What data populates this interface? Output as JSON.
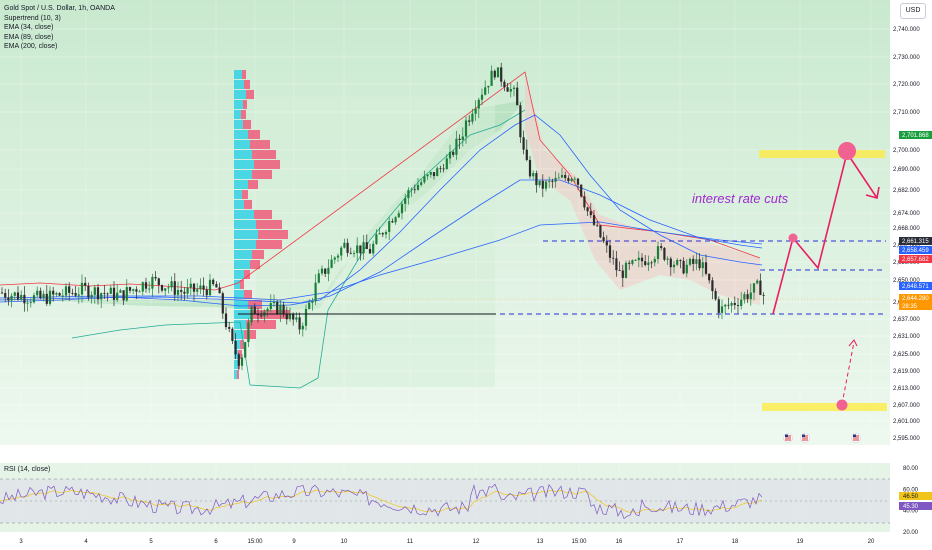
{
  "symbol_line": "Gold Spot / U.S. Dollar, 1h, OANDA",
  "indicators": [
    "Supertrend (10, 3)",
    "EMA (34, close)",
    "EMA (89, close)",
    "EMA (200, close)"
  ],
  "currency": "USD",
  "rsi_label": "RSI (14, close)",
  "annotation": "interest rate cuts",
  "colors": {
    "bull": "#26a69a",
    "bear": "#ef5350",
    "candle": "#1b7f3a",
    "ema": "#2962ff",
    "supertrend_up": "#22ab94",
    "supertrend_down": "#f23645",
    "arrow": "#e91e63",
    "rsi": "#7e57c2",
    "highlight": "#ffeb3b"
  },
  "chart_data": [
    {
      "type": "candlestick",
      "title": "Gold Spot / U.S. Dollar, 1h, OANDA",
      "ylim": [
        2592,
        2744
      ],
      "y_ticks": [
        2595,
        2601,
        2607,
        2613,
        2619,
        2625,
        2631,
        2637,
        2643,
        2650,
        2656,
        2662,
        2668,
        2674,
        2682,
        2690,
        2700,
        2710,
        2720,
        2730,
        2740
      ],
      "y_tick_labels": [
        "2,595.000",
        "2,601.000",
        "2,607.000",
        "2,613.000",
        "2,619.000",
        "2,625.000",
        "2,631.000",
        "2,637.000",
        "2,643.000",
        "2,650.000",
        "2,656.000",
        "2,662.000",
        "2,668.000",
        "2,674.000",
        "2,682.000",
        "2,690.000",
        "2,700.000",
        "2,710.000",
        "2,720.000",
        "2,730.000",
        "2,740.000"
      ],
      "x_ticks": [
        "3",
        "4",
        "5",
        "6",
        "15:00",
        "9",
        "10",
        "11",
        "12",
        "13",
        "15:00",
        "16",
        "17",
        "18",
        "19",
        "20"
      ],
      "price_close_path": [
        [
          "3",
          2646
        ],
        [
          "3.5",
          2644
        ],
        [
          "4",
          2647
        ],
        [
          "4.5",
          2645
        ],
        [
          "5",
          2650
        ],
        [
          "5.5",
          2646
        ],
        [
          "6",
          2647
        ],
        [
          "6.5",
          2640
        ],
        [
          "9",
          2638
        ],
        [
          "9.5",
          2655
        ],
        [
          "10",
          2668
        ],
        [
          "10.5",
          2664
        ],
        [
          "11",
          2685
        ],
        [
          "11.5",
          2695
        ],
        [
          "12",
          2712
        ],
        [
          "12.5",
          2722
        ],
        [
          "12.9",
          2716
        ],
        [
          "13",
          2690
        ],
        [
          "13.5",
          2688
        ],
        [
          "15:00",
          2684
        ],
        [
          "16",
          2656
        ],
        [
          "16.5",
          2650
        ],
        [
          "17",
          2658
        ],
        [
          "17.5",
          2652
        ],
        [
          "18",
          2640
        ],
        [
          "18.5",
          2648
        ]
      ],
      "price_tags": [
        {
          "label": "2,701.868",
          "value": 2701.868,
          "color": "#1b9e3e"
        },
        {
          "label": "2,661.315",
          "value": 2661.315,
          "color": "#2a2e39"
        },
        {
          "label": "2,658.459",
          "value": 2658.459,
          "color": "#2962ff"
        },
        {
          "label": "2,657.682",
          "value": 2657.682,
          "color": "#f23645"
        },
        {
          "label": "2,648.571",
          "value": 2648.571,
          "color": "#2962ff"
        },
        {
          "label": "2,644.280",
          "value": 2644.28,
          "color": "#ff9800"
        },
        {
          "label": "28:35",
          "value": 2642.2,
          "color": "#ff9800"
        }
      ],
      "levels": [
        {
          "value": 2661.3,
          "style": "dashed"
        },
        {
          "value": 2656.2,
          "style": "dashed"
        },
        {
          "value": 2641.0,
          "style": "dashed"
        },
        {
          "value": 2641.0,
          "style": "solid"
        }
      ],
      "projection_path": [
        [
          2641,
          0
        ],
        [
          2662,
          1
        ],
        [
          2656,
          2
        ],
        [
          2697,
          3
        ],
        [
          2685,
          4
        ]
      ],
      "highlight_zones": [
        2697,
        2605
      ]
    },
    {
      "type": "line",
      "title": "RSI (14, close)",
      "ylim": [
        20,
        80
      ],
      "y_ticks": [
        20,
        40,
        60,
        80
      ],
      "y_tick_labels": [
        "20.00",
        "40.00",
        "60.00",
        "80.00"
      ],
      "last_values": [
        {
          "label": "46.50",
          "value": 46.5
        },
        {
          "label": "45.30",
          "value": 45.3
        }
      ]
    }
  ]
}
